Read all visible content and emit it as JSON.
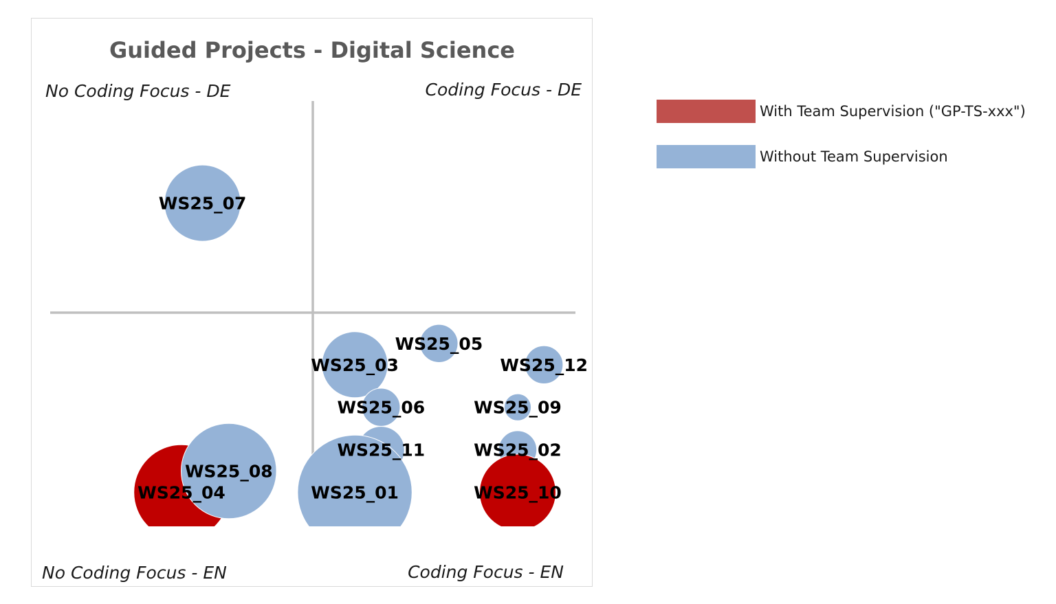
{
  "colors": {
    "with_team": "#c00000",
    "with_team_legend": "#c0504d",
    "without_team": "#95b3d7",
    "divider": "#bfbfbf",
    "bubble_stroke": "#ffffff"
  },
  "legend": [
    {
      "label": "With Team Supervision (\"GP-TS-xxx\")",
      "series": "with_team"
    },
    {
      "label": "Without Team Supervision",
      "series": "without_team"
    }
  ],
  "chart_data": {
    "type": "scatter",
    "subtype": "bubble-quadrant",
    "title": "Guided Projects - Digital Science",
    "quadrants": {
      "top_left": "No Coding Focus - DE",
      "top_right": "Coding Focus - DE",
      "bottom_left": "No Coding Focus - EN",
      "bottom_right": "Coding Focus - EN"
    },
    "xlim": [
      0,
      10
    ],
    "ylim": [
      0,
      10
    ],
    "bubbles": [
      {
        "label": "WS25_07",
        "series": "without_team",
        "x": 2.9,
        "y": 7.6,
        "size": 3.2
      },
      {
        "label": "WS25_05",
        "series": "without_team",
        "x": 7.4,
        "y": 4.3,
        "size": 0.8
      },
      {
        "label": "WS25_03",
        "series": "without_team",
        "x": 5.8,
        "y": 3.8,
        "size": 2.4
      },
      {
        "label": "WS25_12",
        "series": "without_team",
        "x": 9.4,
        "y": 3.8,
        "size": 0.8
      },
      {
        "label": "WS25_06",
        "series": "without_team",
        "x": 6.3,
        "y": 2.8,
        "size": 0.8
      },
      {
        "label": "WS25_09",
        "series": "without_team",
        "x": 8.9,
        "y": 2.8,
        "size": 0.4
      },
      {
        "label": "WS25_11",
        "series": "without_team",
        "x": 6.3,
        "y": 1.8,
        "size": 1.2
      },
      {
        "label": "WS25_02",
        "series": "without_team",
        "x": 8.9,
        "y": 1.8,
        "size": 0.8
      },
      {
        "label": "WS25_04",
        "series": "with_team",
        "x": 2.5,
        "y": 0.8,
        "size": 5.0
      },
      {
        "label": "WS25_08",
        "series": "without_team",
        "x": 3.4,
        "y": 1.3,
        "size": 5.0
      },
      {
        "label": "WS25_01",
        "series": "without_team",
        "x": 5.8,
        "y": 0.8,
        "size": 7.2
      },
      {
        "label": "WS25_10",
        "series": "with_team",
        "x": 8.9,
        "y": 0.8,
        "size": 3.2
      }
    ]
  }
}
